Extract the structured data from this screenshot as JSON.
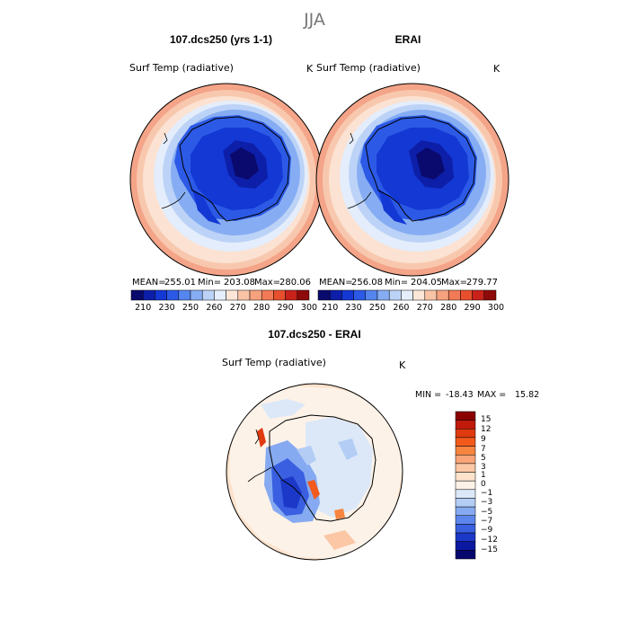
{
  "figure": {
    "season": "JJA"
  },
  "chart_data": [
    {
      "type": "heatmap",
      "projection": "south-polar-stereographic",
      "title": "107.dcs250 (yrs 1-1)",
      "variable": "Surf Temp (radiative)",
      "units": "K",
      "stats": {
        "mean_label": "MEAN=",
        "mean": "255.01",
        "min_label": "Min=",
        "min": "203.08",
        "max_label": "Max=",
        "max": "280.06"
      },
      "colorbar": {
        "orientation": "horizontal",
        "tick_labels": [
          "210",
          "230",
          "250",
          "260",
          "270",
          "280",
          "290",
          "300"
        ],
        "colors": [
          "#0a0a6e",
          "#0d1fa8",
          "#1438d4",
          "#2c5ae6",
          "#5585ee",
          "#86adf3",
          "#bcd3f7",
          "#e6eefb",
          "#fce6d8",
          "#f9c4a6",
          "#f7a27e",
          "#f27a56",
          "#e8502d",
          "#c8221a",
          "#8e0a0a"
        ]
      }
    },
    {
      "type": "heatmap",
      "projection": "south-polar-stereographic",
      "title": "ERAI",
      "variable": "Surf Temp (radiative)",
      "units": "K",
      "stats": {
        "mean_label": "MEAN=",
        "mean": "256.08",
        "min_label": "Min=",
        "min": "204.05",
        "max_label": "Max=",
        "max": "279.77"
      },
      "colorbar": {
        "orientation": "horizontal",
        "tick_labels": [
          "210",
          "230",
          "250",
          "260",
          "270",
          "280",
          "290",
          "300"
        ],
        "colors": [
          "#0a0a6e",
          "#0d1fa8",
          "#1438d4",
          "#2c5ae6",
          "#5585ee",
          "#86adf3",
          "#bcd3f7",
          "#e6eefb",
          "#fce6d8",
          "#f9c4a6",
          "#f7a27e",
          "#f27a56",
          "#e8502d",
          "#c8221a",
          "#8e0a0a"
        ]
      }
    },
    {
      "type": "heatmap",
      "projection": "south-polar-stereographic",
      "title": "107.dcs250 - ERAI",
      "variable": "Surf Temp (radiative)",
      "units": "K",
      "stats": {
        "min_label": "MIN =",
        "min": "-18.43",
        "max_label": "MAX =",
        "max": "15.82"
      },
      "colorbar": {
        "orientation": "vertical",
        "tick_labels": [
          "15",
          "12",
          "9",
          "7",
          "5",
          "3",
          "1",
          "0",
          "−1",
          "−3",
          "−5",
          "−7",
          "−9",
          "−12",
          "−15"
        ],
        "colors": [
          "#8b0000",
          "#c11a0a",
          "#e03a10",
          "#f25a1c",
          "#f7843f",
          "#f9a578",
          "#fbc7a5",
          "#fde2cc",
          "#fdf2e8",
          "#dce8f8",
          "#b3cdf5",
          "#86aaf1",
          "#5d86ec",
          "#3a5fe0",
          "#1c38c8",
          "#0b18a0",
          "#06066e"
        ]
      }
    }
  ]
}
